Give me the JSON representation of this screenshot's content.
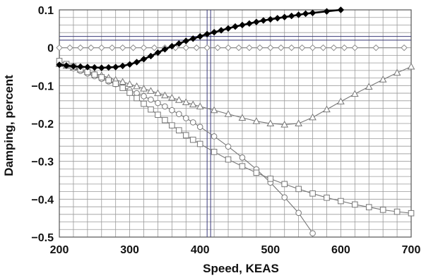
{
  "chart_data": {
    "type": "line",
    "title": "",
    "xlabel": "Speed, KEAS",
    "ylabel": "Damping, percent",
    "xlim": [
      200,
      700
    ],
    "ylim": [
      -0.5,
      0.1
    ],
    "x_ticks": [
      "200",
      "300",
      "400",
      "500",
      "600",
      "700"
    ],
    "y_ticks": [
      "0.1",
      "0",
      "−0.1",
      "−0.2",
      "−0.3",
      "−0.4",
      "−0.5"
    ],
    "grid": true,
    "legend": "none",
    "reference_lines": {
      "vertical_x": [
        410,
        415
      ],
      "horizontal_y": [
        0.02,
        0.03
      ]
    },
    "series": [
      {
        "marker": "filled-diamond",
        "color": "#000000",
        "line_width": "heavy",
        "points": [
          [
            200,
            -0.045
          ],
          [
            210,
            -0.047
          ],
          [
            220,
            -0.049
          ],
          [
            230,
            -0.05
          ],
          [
            240,
            -0.051
          ],
          [
            250,
            -0.052
          ],
          [
            260,
            -0.053
          ],
          [
            270,
            -0.052
          ],
          [
            280,
            -0.051
          ],
          [
            290,
            -0.048
          ],
          [
            300,
            -0.044
          ],
          [
            310,
            -0.038
          ],
          [
            320,
            -0.03
          ],
          [
            330,
            -0.022
          ],
          [
            340,
            -0.013
          ],
          [
            350,
            -0.004
          ],
          [
            360,
            0.004
          ],
          [
            370,
            0.011
          ],
          [
            380,
            0.018
          ],
          [
            390,
            0.024
          ],
          [
            400,
            0.03
          ],
          [
            410,
            0.036
          ],
          [
            420,
            0.041
          ],
          [
            430,
            0.046
          ],
          [
            440,
            0.051
          ],
          [
            450,
            0.056
          ],
          [
            460,
            0.06
          ],
          [
            470,
            0.064
          ],
          [
            480,
            0.068
          ],
          [
            490,
            0.072
          ],
          [
            500,
            0.075
          ],
          [
            510,
            0.078
          ],
          [
            520,
            0.081
          ],
          [
            530,
            0.084
          ],
          [
            540,
            0.087
          ],
          [
            550,
            0.09
          ],
          [
            560,
            0.092
          ],
          [
            580,
            0.096
          ],
          [
            600,
            0.1
          ]
        ]
      },
      {
        "marker": "open-diamond",
        "color": "#888888",
        "line_width": "thin",
        "points": [
          [
            200,
            0.0
          ],
          [
            215,
            0.0
          ],
          [
            230,
            0.0
          ],
          [
            245,
            0.0
          ],
          [
            260,
            0.0
          ],
          [
            275,
            0.0
          ],
          [
            290,
            0.0
          ],
          [
            305,
            0.0
          ],
          [
            320,
            0.0
          ],
          [
            335,
            0.0
          ],
          [
            350,
            0.0
          ],
          [
            365,
            0.0
          ],
          [
            380,
            0.0
          ],
          [
            395,
            0.0
          ],
          [
            410,
            0.0
          ],
          [
            425,
            0.0
          ],
          [
            440,
            0.0
          ],
          [
            455,
            0.0
          ],
          [
            470,
            0.0
          ],
          [
            485,
            0.0
          ],
          [
            500,
            0.0
          ],
          [
            515,
            0.0
          ],
          [
            530,
            0.0
          ],
          [
            545,
            0.0
          ],
          [
            560,
            0.0
          ],
          [
            575,
            0.0
          ],
          [
            590,
            0.0
          ],
          [
            605,
            0.0
          ],
          [
            620,
            0.0
          ],
          [
            650,
            0.0
          ],
          [
            690,
            0.0
          ]
        ]
      },
      {
        "marker": "open-triangle",
        "color": "#777777",
        "line_width": "thin",
        "points": [
          [
            200,
            -0.043
          ],
          [
            210,
            -0.048
          ],
          [
            220,
            -0.053
          ],
          [
            230,
            -0.058
          ],
          [
            240,
            -0.063
          ],
          [
            250,
            -0.068
          ],
          [
            260,
            -0.073
          ],
          [
            270,
            -0.079
          ],
          [
            280,
            -0.085
          ],
          [
            290,
            -0.09
          ],
          [
            300,
            -0.096
          ],
          [
            310,
            -0.102
          ],
          [
            320,
            -0.108
          ],
          [
            330,
            -0.114
          ],
          [
            340,
            -0.12
          ],
          [
            350,
            -0.126
          ],
          [
            360,
            -0.132
          ],
          [
            370,
            -0.138
          ],
          [
            380,
            -0.144
          ],
          [
            390,
            -0.15
          ],
          [
            400,
            -0.155
          ],
          [
            420,
            -0.165
          ],
          [
            440,
            -0.175
          ],
          [
            460,
            -0.185
          ],
          [
            480,
            -0.194
          ],
          [
            500,
            -0.2
          ],
          [
            520,
            -0.203
          ],
          [
            540,
            -0.2
          ],
          [
            560,
            -0.184
          ],
          [
            580,
            -0.163
          ],
          [
            600,
            -0.142
          ],
          [
            620,
            -0.122
          ],
          [
            640,
            -0.103
          ],
          [
            660,
            -0.084
          ],
          [
            680,
            -0.066
          ],
          [
            700,
            -0.05
          ]
        ]
      },
      {
        "marker": "open-circle",
        "color": "#777777",
        "line_width": "thin",
        "points": [
          [
            200,
            -0.04
          ],
          [
            210,
            -0.047
          ],
          [
            220,
            -0.054
          ],
          [
            230,
            -0.061
          ],
          [
            240,
            -0.068
          ],
          [
            250,
            -0.075
          ],
          [
            260,
            -0.082
          ],
          [
            270,
            -0.089
          ],
          [
            280,
            -0.096
          ],
          [
            290,
            -0.104
          ],
          [
            300,
            -0.112
          ],
          [
            310,
            -0.12
          ],
          [
            320,
            -0.128
          ],
          [
            330,
            -0.137
          ],
          [
            340,
            -0.146
          ],
          [
            350,
            -0.155
          ],
          [
            360,
            -0.165
          ],
          [
            370,
            -0.175
          ],
          [
            380,
            -0.186
          ],
          [
            390,
            -0.197
          ],
          [
            400,
            -0.209
          ],
          [
            420,
            -0.234
          ],
          [
            440,
            -0.261
          ],
          [
            460,
            -0.29
          ],
          [
            480,
            -0.321
          ],
          [
            500,
            -0.356
          ],
          [
            520,
            -0.395
          ],
          [
            540,
            -0.436
          ],
          [
            560,
            -0.49
          ]
        ]
      },
      {
        "marker": "open-square",
        "color": "#777777",
        "line_width": "thin",
        "points": [
          [
            200,
            -0.035
          ],
          [
            210,
            -0.043
          ],
          [
            220,
            -0.05
          ],
          [
            230,
            -0.057
          ],
          [
            240,
            -0.064
          ],
          [
            250,
            -0.071
          ],
          [
            260,
            -0.078
          ],
          [
            270,
            -0.086
          ],
          [
            280,
            -0.095
          ],
          [
            290,
            -0.106
          ],
          [
            300,
            -0.119
          ],
          [
            310,
            -0.133
          ],
          [
            320,
            -0.148
          ],
          [
            330,
            -0.163
          ],
          [
            340,
            -0.177
          ],
          [
            350,
            -0.191
          ],
          [
            360,
            -0.205
          ],
          [
            370,
            -0.218
          ],
          [
            380,
            -0.231
          ],
          [
            390,
            -0.243
          ],
          [
            400,
            -0.254
          ],
          [
            420,
            -0.275
          ],
          [
            440,
            -0.295
          ],
          [
            460,
            -0.313
          ],
          [
            480,
            -0.33
          ],
          [
            500,
            -0.346
          ],
          [
            520,
            -0.36
          ],
          [
            540,
            -0.373
          ],
          [
            560,
            -0.385
          ],
          [
            580,
            -0.396
          ],
          [
            600,
            -0.405
          ],
          [
            620,
            -0.414
          ],
          [
            640,
            -0.421
          ],
          [
            660,
            -0.428
          ],
          [
            680,
            -0.433
          ],
          [
            700,
            -0.437
          ]
        ]
      }
    ]
  }
}
